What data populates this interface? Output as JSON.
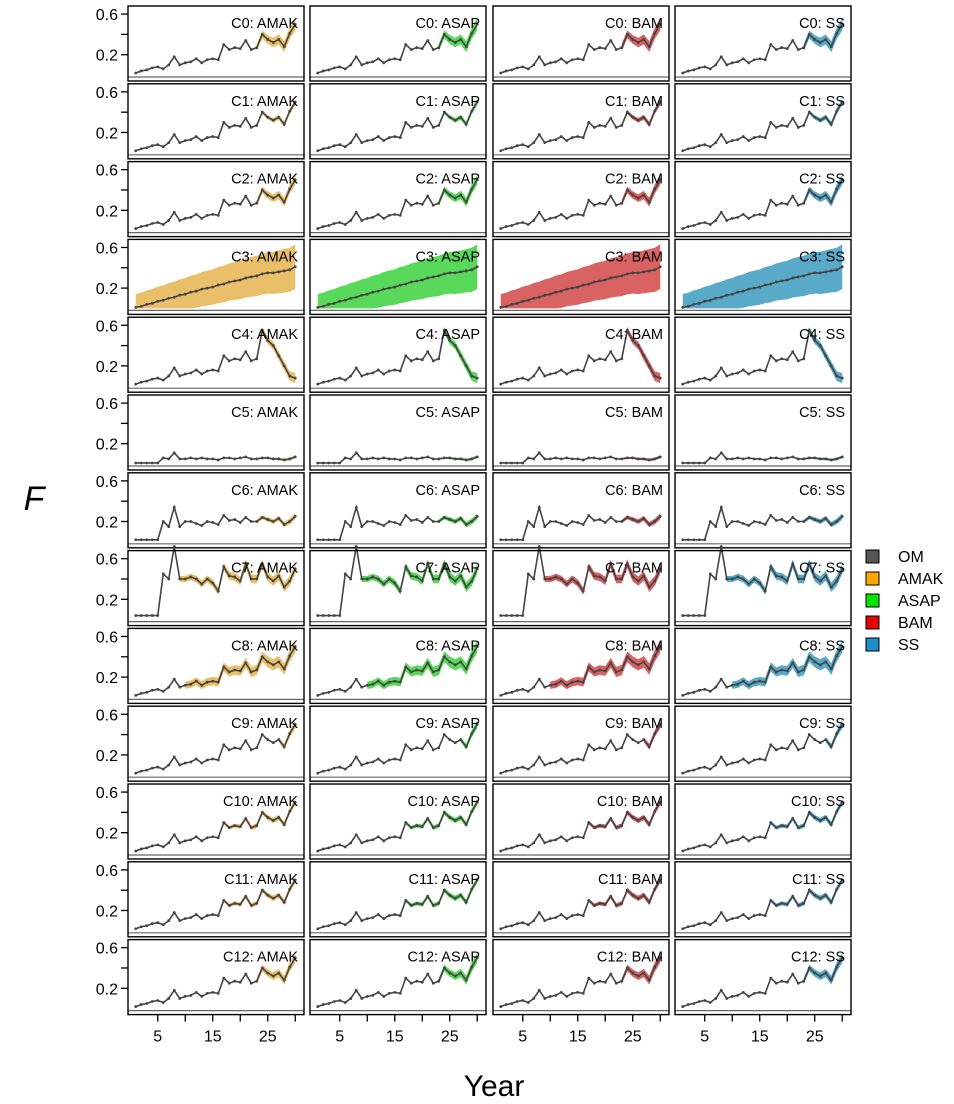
{
  "chart_data": {
    "type": "line",
    "xlabel": "Year",
    "ylabel": "F",
    "xlim": [
      0.5,
      30.5
    ],
    "ylim": [
      0,
      0.65
    ],
    "x_ticks": [
      5,
      15,
      25
    ],
    "y_ticks": [
      0.2,
      0.6
    ],
    "y_minor_ticks": [
      0.4
    ],
    "years": [
      1,
      2,
      3,
      4,
      5,
      6,
      7,
      8,
      9,
      10,
      11,
      12,
      13,
      14,
      15,
      16,
      17,
      18,
      19,
      20,
      21,
      22,
      23,
      24,
      25,
      26,
      27,
      28,
      29,
      30
    ],
    "models": [
      "AMAK",
      "ASAP",
      "BAM",
      "SS"
    ],
    "legend": {
      "placement": "right",
      "entries": [
        {
          "name": "OM",
          "color": "#555555"
        },
        {
          "name": "AMAK",
          "color": "#FFA500"
        },
        {
          "name": "ASAP",
          "color": "#00E600"
        },
        {
          "name": "BAM",
          "color": "#E60000"
        },
        {
          "name": "SS",
          "color": "#1E90C8"
        }
      ]
    },
    "band_colors": {
      "AMAK": "#E6B450",
      "ASAP": "#3CD23C",
      "BAM": "#D24646",
      "SS": "#3C9BBE"
    },
    "om_color": "#444444",
    "rows": [
      {
        "case": "C0",
        "om": [
          0.02,
          0.04,
          0.05,
          0.07,
          0.08,
          0.06,
          0.1,
          0.18,
          0.1,
          0.12,
          0.13,
          0.16,
          0.12,
          0.15,
          0.16,
          0.15,
          0.3,
          0.25,
          0.27,
          0.26,
          0.34,
          0.25,
          0.27,
          0.4,
          0.35,
          0.32,
          0.35,
          0.28,
          0.41,
          0.5
        ],
        "fit_start": 23,
        "band_width": 0.06
      },
      {
        "case": "C1",
        "om": [
          0.02,
          0.04,
          0.05,
          0.07,
          0.08,
          0.06,
          0.1,
          0.18,
          0.1,
          0.12,
          0.13,
          0.16,
          0.12,
          0.15,
          0.16,
          0.15,
          0.3,
          0.25,
          0.27,
          0.26,
          0.34,
          0.25,
          0.27,
          0.4,
          0.35,
          0.32,
          0.35,
          0.28,
          0.41,
          0.5
        ],
        "fit_start": 23,
        "band_width": 0.03
      },
      {
        "case": "C2",
        "om": [
          0.02,
          0.04,
          0.05,
          0.07,
          0.08,
          0.06,
          0.1,
          0.18,
          0.1,
          0.12,
          0.13,
          0.16,
          0.12,
          0.15,
          0.16,
          0.15,
          0.3,
          0.25,
          0.27,
          0.26,
          0.34,
          0.25,
          0.27,
          0.4,
          0.35,
          0.32,
          0.35,
          0.28,
          0.41,
          0.5
        ],
        "fit_start": 23,
        "band_width": 0.05
      },
      {
        "case": "C3",
        "om": [
          0.01,
          0.02,
          0.04,
          0.05,
          0.07,
          0.08,
          0.1,
          0.11,
          0.13,
          0.14,
          0.16,
          0.17,
          0.19,
          0.2,
          0.21,
          0.23,
          0.24,
          0.26,
          0.27,
          0.28,
          0.3,
          0.31,
          0.32,
          0.34,
          0.35,
          0.35,
          0.36,
          0.37,
          0.38,
          0.41
        ],
        "fit_start": 1,
        "band_width": 0.22
      },
      {
        "case": "C4",
        "om": [
          0.02,
          0.04,
          0.05,
          0.07,
          0.08,
          0.06,
          0.1,
          0.18,
          0.1,
          0.12,
          0.13,
          0.16,
          0.12,
          0.15,
          0.16,
          0.15,
          0.3,
          0.25,
          0.27,
          0.26,
          0.34,
          0.25,
          0.27,
          0.55,
          0.45,
          0.4,
          0.3,
          0.2,
          0.1,
          0.08
        ],
        "fit_start": 23,
        "band_width": 0.05
      },
      {
        "case": "C5",
        "om": [
          0.01,
          0.01,
          0.01,
          0.01,
          0.01,
          0.06,
          0.05,
          0.11,
          0.05,
          0.05,
          0.06,
          0.05,
          0.06,
          0.05,
          0.05,
          0.04,
          0.06,
          0.06,
          0.05,
          0.06,
          0.07,
          0.05,
          0.05,
          0.06,
          0.06,
          0.05,
          0.05,
          0.04,
          0.05,
          0.07
        ],
        "fit_start": 23,
        "band_width": 0.015
      },
      {
        "case": "C6",
        "om": [
          0.02,
          0.02,
          0.02,
          0.02,
          0.02,
          0.2,
          0.15,
          0.34,
          0.15,
          0.2,
          0.2,
          0.18,
          0.16,
          0.2,
          0.19,
          0.17,
          0.26,
          0.21,
          0.22,
          0.19,
          0.24,
          0.2,
          0.2,
          0.24,
          0.22,
          0.2,
          0.23,
          0.17,
          0.2,
          0.25
        ],
        "fit_start": 23,
        "band_width": 0.03
      },
      {
        "case": "C7",
        "om": [
          0.04,
          0.04,
          0.04,
          0.04,
          0.04,
          0.45,
          0.4,
          0.72,
          0.4,
          0.4,
          0.42,
          0.4,
          0.35,
          0.4,
          0.36,
          0.28,
          0.52,
          0.43,
          0.42,
          0.38,
          0.55,
          0.4,
          0.4,
          0.55,
          0.42,
          0.38,
          0.43,
          0.32,
          0.38,
          0.5
        ],
        "fit_start": 9,
        "band_width": 0.05
      },
      {
        "case": "C8",
        "om": [
          0.02,
          0.04,
          0.05,
          0.07,
          0.08,
          0.06,
          0.1,
          0.18,
          0.1,
          0.12,
          0.13,
          0.16,
          0.12,
          0.15,
          0.16,
          0.15,
          0.3,
          0.25,
          0.27,
          0.26,
          0.34,
          0.25,
          0.27,
          0.4,
          0.35,
          0.32,
          0.35,
          0.28,
          0.41,
          0.5
        ],
        "fit_start": 10,
        "band_width": 0.06
      },
      {
        "case": "C9",
        "om": [
          0.02,
          0.04,
          0.05,
          0.07,
          0.08,
          0.06,
          0.1,
          0.18,
          0.1,
          0.12,
          0.13,
          0.16,
          0.12,
          0.15,
          0.16,
          0.15,
          0.3,
          0.25,
          0.27,
          0.26,
          0.34,
          0.25,
          0.27,
          0.4,
          0.35,
          0.32,
          0.35,
          0.28,
          0.41,
          0.5
        ],
        "fit_start": 27,
        "band_width": 0.04
      },
      {
        "case": "C10",
        "om": [
          0.02,
          0.04,
          0.05,
          0.07,
          0.08,
          0.06,
          0.1,
          0.18,
          0.1,
          0.12,
          0.13,
          0.16,
          0.12,
          0.15,
          0.16,
          0.15,
          0.3,
          0.25,
          0.27,
          0.26,
          0.34,
          0.25,
          0.27,
          0.4,
          0.35,
          0.32,
          0.35,
          0.28,
          0.41,
          0.5
        ],
        "fit_start": 17,
        "band_width": 0.03
      },
      {
        "case": "C11",
        "om": [
          0.02,
          0.04,
          0.05,
          0.07,
          0.08,
          0.06,
          0.1,
          0.18,
          0.1,
          0.12,
          0.13,
          0.16,
          0.12,
          0.15,
          0.16,
          0.15,
          0.3,
          0.25,
          0.27,
          0.26,
          0.34,
          0.25,
          0.27,
          0.4,
          0.35,
          0.32,
          0.35,
          0.28,
          0.41,
          0.5
        ],
        "fit_start": 17,
        "band_width": 0.03
      },
      {
        "case": "C12",
        "om": [
          0.02,
          0.04,
          0.05,
          0.07,
          0.08,
          0.06,
          0.1,
          0.18,
          0.1,
          0.12,
          0.13,
          0.16,
          0.12,
          0.15,
          0.16,
          0.15,
          0.3,
          0.25,
          0.27,
          0.26,
          0.34,
          0.25,
          0.27,
          0.4,
          0.35,
          0.32,
          0.35,
          0.28,
          0.41,
          0.5
        ],
        "fit_start": 23,
        "band_width": 0.05
      }
    ]
  }
}
